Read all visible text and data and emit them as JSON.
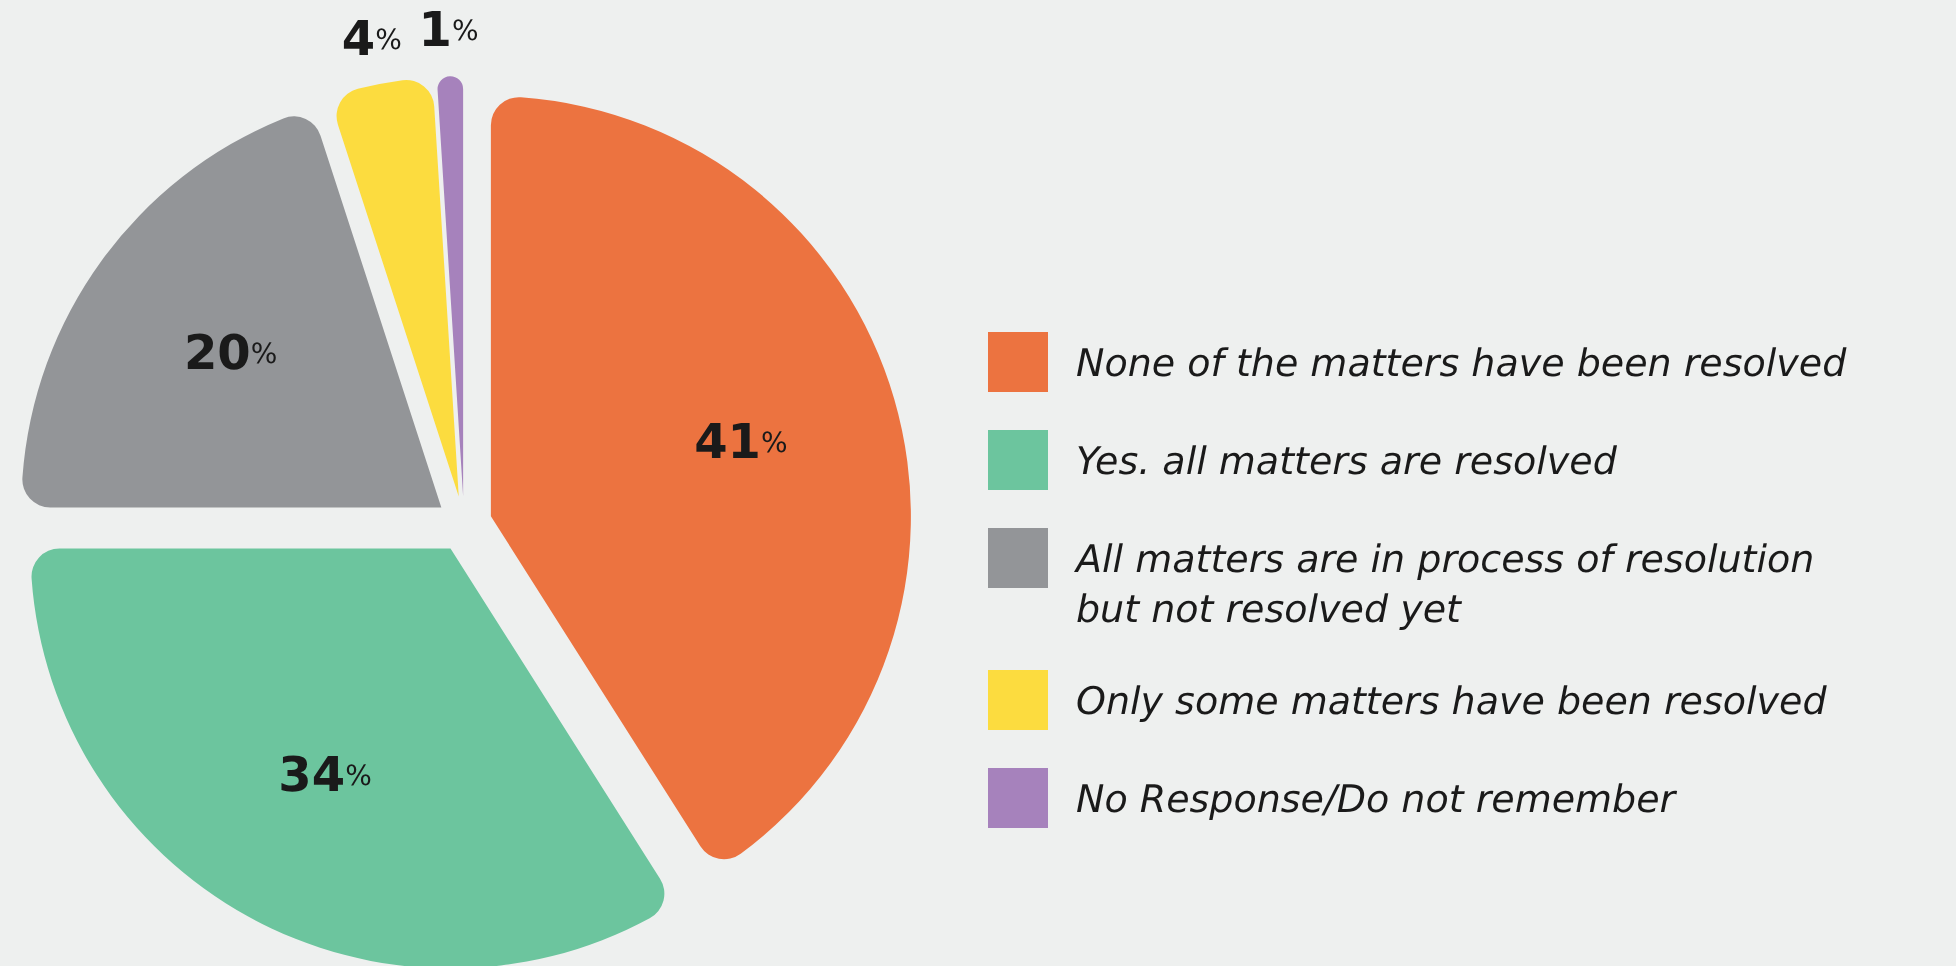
{
  "chart_data": {
    "type": "pie",
    "categories": [
      "None of the matters have been resolved",
      "Yes. all matters are resolved",
      "All matters are in process of resolution but not resolved yet",
      "Only some matters have been resolved",
      "No Response/Do not remember"
    ],
    "values": [
      41,
      34,
      20,
      4,
      1
    ],
    "colors": [
      "#ec7340",
      "#6cc59e",
      "#939598",
      "#fcdc3f",
      "#a682bc"
    ],
    "value_labels": [
      "41%",
      "34%",
      "20%",
      "4%",
      "1%"
    ],
    "legend": "right"
  }
}
